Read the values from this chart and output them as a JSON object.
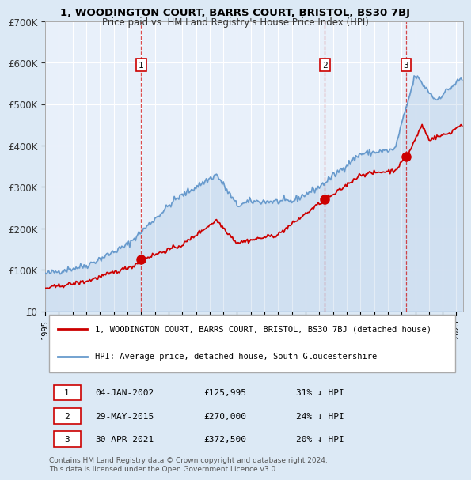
{
  "title": "1, WOODINGTON COURT, BARRS COURT, BRISTOL, BS30 7BJ",
  "subtitle": "Price paid vs. HM Land Registry's House Price Index (HPI)",
  "ylabel_ticks": [
    "£0",
    "£100K",
    "£200K",
    "£300K",
    "£400K",
    "£500K",
    "£600K",
    "£700K"
  ],
  "ylim": [
    0,
    700000
  ],
  "xlim_start": 1995.0,
  "xlim_end": 2025.5,
  "bg_color": "#dce9f5",
  "plot_bg": "#e8f0fa",
  "red_line_color": "#cc0000",
  "blue_line_color": "#6699cc",
  "sale_dates": [
    "2002-01-04",
    "2015-05-29",
    "2021-04-30"
  ],
  "sale_prices": [
    125995,
    270000,
    372500
  ],
  "sale_labels": [
    "1",
    "2",
    "3"
  ],
  "sale_label_info": [
    {
      "num": "1",
      "date": "04-JAN-2002",
      "price": "£125,995",
      "pct": "31%"
    },
    {
      "num": "2",
      "date": "29-MAY-2015",
      "price": "£270,000",
      "pct": "24%"
    },
    {
      "num": "3",
      "date": "30-APR-2021",
      "price": "£372,500",
      "pct": "20%"
    }
  ],
  "legend_red": "1, WOODINGTON COURT, BARRS COURT, BRISTOL, BS30 7BJ (detached house)",
  "legend_blue": "HPI: Average price, detached house, South Gloucestershire",
  "footer": "Contains HM Land Registry data © Crown copyright and database right 2024.\nThis data is licensed under the Open Government Licence v3.0."
}
